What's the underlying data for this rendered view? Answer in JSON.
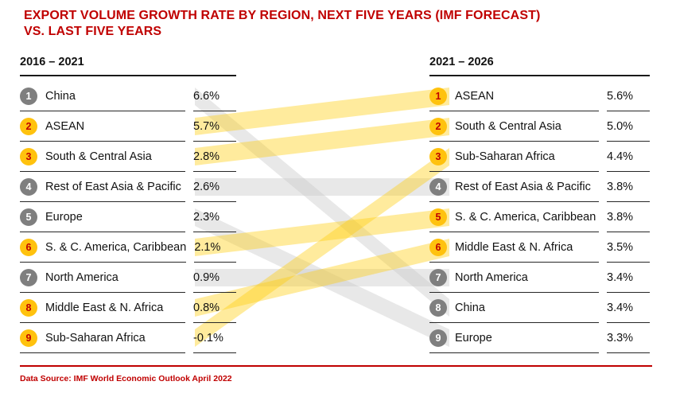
{
  "title": {
    "line1": "EXPORT VOLUME GROWTH RATE BY REGION, NEXT FIVE YEARS (IMF FORECAST)",
    "line2": "VS. LAST FIVE YEARS"
  },
  "columns": [
    {
      "header": "2016 – 2021",
      "rows": [
        {
          "rank": "1",
          "label": "China",
          "value": "6.6%",
          "highlight": false
        },
        {
          "rank": "2",
          "label": "ASEAN",
          "value": "5.7%",
          "highlight": true
        },
        {
          "rank": "3",
          "label": "South & Central Asia",
          "value": "2.8%",
          "highlight": true
        },
        {
          "rank": "4",
          "label": "Rest of East Asia & Pacific",
          "value": "2.6%",
          "highlight": false
        },
        {
          "rank": "5",
          "label": "Europe",
          "value": "2.3%",
          "highlight": false
        },
        {
          "rank": "6",
          "label": "S. & C. America, Caribbean",
          "value": "2.1%",
          "highlight": true
        },
        {
          "rank": "7",
          "label": "North America",
          "value": "0.9%",
          "highlight": false
        },
        {
          "rank": "8",
          "label": "Middle East & N. Africa",
          "value": "0.8%",
          "highlight": true
        },
        {
          "rank": "9",
          "label": "Sub-Saharan Africa",
          "value": "-0.1%",
          "highlight": true
        }
      ]
    },
    {
      "header": "2021 – 2026",
      "rows": [
        {
          "rank": "1",
          "label": "ASEAN",
          "value": "5.6%",
          "highlight": true
        },
        {
          "rank": "2",
          "label": "South & Central Asia",
          "value": "5.0%",
          "highlight": true
        },
        {
          "rank": "3",
          "label": "Sub-Saharan Africa",
          "value": "4.4%",
          "highlight": true
        },
        {
          "rank": "4",
          "label": "Rest of East Asia & Pacific",
          "value": "3.8%",
          "highlight": false
        },
        {
          "rank": "5",
          "label": "S. & C. America, Caribbean",
          "value": "3.8%",
          "highlight": true
        },
        {
          "rank": "6",
          "label": "Middle East & N. Africa",
          "value": "3.5%",
          "highlight": true
        },
        {
          "rank": "7",
          "label": "North America",
          "value": "3.4%",
          "highlight": false
        },
        {
          "rank": "8",
          "label": "China",
          "value": "3.4%",
          "highlight": false
        },
        {
          "rank": "9",
          "label": "Europe",
          "value": "3.3%",
          "highlight": false
        }
      ]
    }
  ],
  "flows": [
    {
      "region": "China",
      "from": 1,
      "to": 8,
      "highlight": false
    },
    {
      "region": "ASEAN",
      "from": 2,
      "to": 1,
      "highlight": true
    },
    {
      "region": "South & Central Asia",
      "from": 3,
      "to": 2,
      "highlight": true
    },
    {
      "region": "Rest of East Asia & Pacific",
      "from": 4,
      "to": 4,
      "highlight": false
    },
    {
      "region": "Europe",
      "from": 5,
      "to": 9,
      "highlight": false
    },
    {
      "region": "S. & C. America, Caribbean",
      "from": 6,
      "to": 5,
      "highlight": true
    },
    {
      "region": "North America",
      "from": 7,
      "to": 7,
      "highlight": false
    },
    {
      "region": "Middle East & N. Africa",
      "from": 8,
      "to": 6,
      "highlight": true
    },
    {
      "region": "Sub-Saharan Africa",
      "from": 9,
      "to": 3,
      "highlight": true
    }
  ],
  "footer": {
    "source": "Data Source: IMF World Economic Outlook April 2022"
  },
  "colors": {
    "accent_red": "#C00000",
    "badge_yellow": "#FFC20E",
    "badge_yellow_text": "#C00000",
    "badge_gray": "#7F7F7F",
    "badge_gray_text": "#FFFFFF",
    "flow_yellow": "rgba(255,204,10,0.40)",
    "flow_gray": "rgba(201,201,201,0.42)"
  },
  "chart_data": {
    "type": "table",
    "title": "Export volume growth rate by region, next five years (IMF forecast) vs. last five years",
    "series": [
      {
        "name": "2016 – 2021",
        "ranking": [
          {
            "rank": 1,
            "region": "China",
            "growth_pct": 6.6
          },
          {
            "rank": 2,
            "region": "ASEAN",
            "growth_pct": 5.7
          },
          {
            "rank": 3,
            "region": "South & Central Asia",
            "growth_pct": 2.8
          },
          {
            "rank": 4,
            "region": "Rest of East Asia & Pacific",
            "growth_pct": 2.6
          },
          {
            "rank": 5,
            "region": "Europe",
            "growth_pct": 2.3
          },
          {
            "rank": 6,
            "region": "S. & C. America, Caribbean",
            "growth_pct": 2.1
          },
          {
            "rank": 7,
            "region": "North America",
            "growth_pct": 0.9
          },
          {
            "rank": 8,
            "region": "Middle East & N. Africa",
            "growth_pct": 0.8
          },
          {
            "rank": 9,
            "region": "Sub-Saharan Africa",
            "growth_pct": -0.1
          }
        ]
      },
      {
        "name": "2021 – 2026",
        "ranking": [
          {
            "rank": 1,
            "region": "ASEAN",
            "growth_pct": 5.6
          },
          {
            "rank": 2,
            "region": "South & Central Asia",
            "growth_pct": 5.0
          },
          {
            "rank": 3,
            "region": "Sub-Saharan Africa",
            "growth_pct": 4.4
          },
          {
            "rank": 4,
            "region": "Rest of East Asia & Pacific",
            "growth_pct": 3.8
          },
          {
            "rank": 5,
            "region": "S. & C. America, Caribbean",
            "growth_pct": 3.8
          },
          {
            "rank": 6,
            "region": "Middle East & N. Africa",
            "growth_pct": 3.5
          },
          {
            "rank": 7,
            "region": "North America",
            "growth_pct": 3.4
          },
          {
            "rank": 8,
            "region": "China",
            "growth_pct": 3.4
          },
          {
            "rank": 9,
            "region": "Europe",
            "growth_pct": 3.3
          }
        ]
      }
    ],
    "highlighted_regions": [
      "ASEAN",
      "South & Central Asia",
      "S. & C. America, Caribbean",
      "Middle East & N. Africa",
      "Sub-Saharan Africa"
    ],
    "source": "IMF World Economic Outlook April 2022"
  }
}
